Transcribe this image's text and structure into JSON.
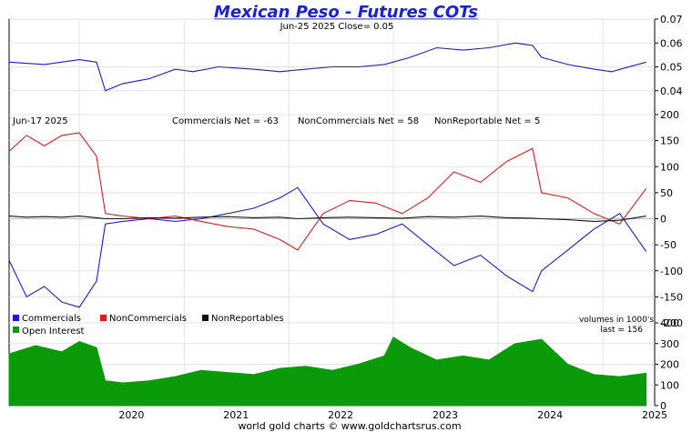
{
  "title": "Mexican Peso - Futures COTs",
  "footer": "world gold charts © www.goldchartsrus.com",
  "colors": {
    "title": "#1a22d6",
    "price": "#1a1adb",
    "commercials": "#1a1adb",
    "noncommercials": "#e01a1a",
    "nonreportables": "#111111",
    "open_interest": "#0a9a0a",
    "grid": "#e3e3e3"
  },
  "x_axis": {
    "ticks": [
      "2020",
      "2021",
      "2022",
      "2023",
      "2024",
      "2025"
    ]
  },
  "chart_data": [
    {
      "type": "line",
      "panel": "price",
      "header": "Jun-25  2025   Close= 0.05",
      "ylim": [
        0.03,
        0.07
      ],
      "y_ticks": [
        "0.07",
        "0.06",
        "0.05",
        "0.04"
      ],
      "x": [
        "2019-05",
        "2019-09",
        "2020-01",
        "2020-03",
        "2020-04",
        "2020-06",
        "2020-09",
        "2020-12",
        "2021-02",
        "2021-05",
        "2021-09",
        "2021-12",
        "2022-03",
        "2022-06",
        "2022-09",
        "2022-12",
        "2023-03",
        "2023-06",
        "2023-09",
        "2023-12",
        "2024-03",
        "2024-05",
        "2024-06",
        "2024-09",
        "2024-12",
        "2025-02",
        "2025-06"
      ],
      "series": [
        {
          "values": [
            0.052,
            0.051,
            0.053,
            0.052,
            0.04,
            0.043,
            0.045,
            0.049,
            0.048,
            0.05,
            0.049,
            0.048,
            0.049,
            0.05,
            0.05,
            0.051,
            0.054,
            0.058,
            0.057,
            0.058,
            0.06,
            0.059,
            0.054,
            0.051,
            0.049,
            0.048,
            0.052
          ]
        }
      ]
    },
    {
      "type": "line",
      "panel": "cot",
      "header_date": "Jun-17  2025",
      "header_values": [
        "Commercials Net = -63",
        "NonCommercials Net = 58",
        "NonReportable Net = 5"
      ],
      "ylim": [
        -200,
        200
      ],
      "y_ticks": [
        "200",
        "150",
        "100",
        "50",
        "0",
        "-50",
        "-100",
        "-150",
        "-200"
      ],
      "legend": [
        "Commercials",
        "NonCommercials",
        "NonReportables"
      ],
      "note": "volumes in 1000's",
      "x": [
        "2019-05",
        "2019-07",
        "2019-09",
        "2019-11",
        "2020-01",
        "2020-03",
        "2020-04",
        "2020-06",
        "2020-09",
        "2020-12",
        "2021-03",
        "2021-06",
        "2021-09",
        "2021-12",
        "2022-02",
        "2022-05",
        "2022-08",
        "2022-11",
        "2023-02",
        "2023-05",
        "2023-08",
        "2023-11",
        "2024-02",
        "2024-05",
        "2024-06",
        "2024-09",
        "2024-12",
        "2025-03",
        "2025-06"
      ],
      "series": [
        {
          "name": "Commercials",
          "values": [
            -80,
            -150,
            -130,
            -160,
            -170,
            -120,
            -10,
            -5,
            0,
            -5,
            0,
            10,
            20,
            40,
            60,
            -10,
            -40,
            -30,
            -10,
            -50,
            -90,
            -70,
            -110,
            -140,
            -100,
            -60,
            -20,
            10,
            -63
          ]
        },
        {
          "name": "NonCommercials",
          "values": [
            130,
            160,
            140,
            160,
            165,
            120,
            10,
            5,
            0,
            5,
            -5,
            -15,
            -20,
            -40,
            -60,
            10,
            35,
            30,
            10,
            40,
            90,
            70,
            110,
            135,
            50,
            40,
            10,
            -10,
            58
          ]
        },
        {
          "name": "NonReportables",
          "values": [
            5,
            3,
            4,
            3,
            5,
            2,
            0,
            0,
            2,
            1,
            3,
            4,
            2,
            3,
            0,
            2,
            3,
            2,
            1,
            4,
            3,
            5,
            2,
            1,
            0,
            -2,
            -5,
            -3,
            5
          ]
        }
      ]
    },
    {
      "type": "area",
      "panel": "open_interest",
      "legend": [
        "Open Interest"
      ],
      "note": "last = 156",
      "ylim": [
        0,
        400
      ],
      "y_ticks": [
        "400",
        "300",
        "200",
        "100",
        "0"
      ],
      "x": [
        "2019-05",
        "2019-08",
        "2019-11",
        "2020-01",
        "2020-03",
        "2020-04",
        "2020-06",
        "2020-09",
        "2020-12",
        "2021-03",
        "2021-06",
        "2021-09",
        "2021-12",
        "2022-03",
        "2022-06",
        "2022-09",
        "2022-12",
        "2023-01",
        "2023-03",
        "2023-06",
        "2023-09",
        "2023-12",
        "2024-03",
        "2024-06",
        "2024-09",
        "2024-12",
        "2025-03",
        "2025-06"
      ],
      "series": [
        {
          "name": "Open Interest",
          "values": [
            250,
            290,
            260,
            310,
            280,
            120,
            110,
            120,
            140,
            170,
            160,
            150,
            180,
            190,
            170,
            200,
            240,
            330,
            280,
            220,
            240,
            220,
            300,
            320,
            200,
            150,
            140,
            156
          ]
        }
      ]
    }
  ]
}
